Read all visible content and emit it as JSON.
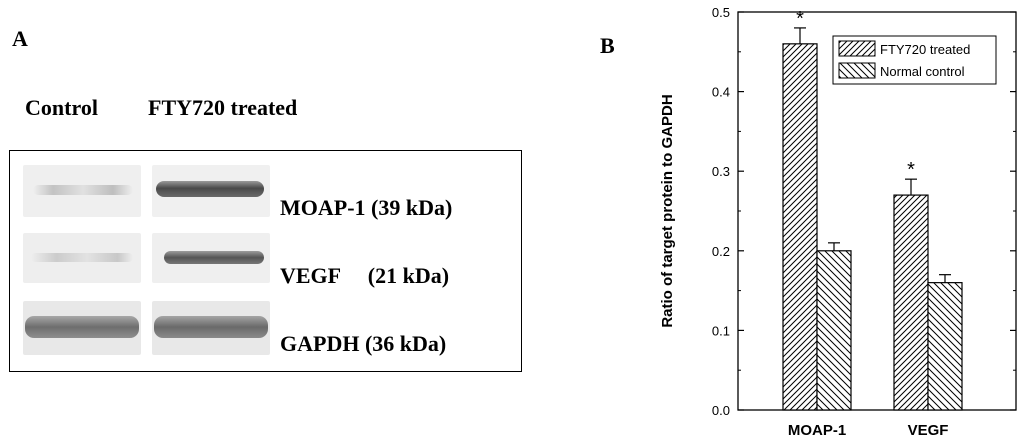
{
  "panel_a": {
    "label": "A",
    "lane_headers": [
      "Control",
      "FTY720 treated"
    ],
    "bands": [
      {
        "name": "MOAP-1 (39 kDa)",
        "control_intensity": 0.12,
        "treated_intensity": 0.75
      },
      {
        "name": "VEGF     (21 kDa)",
        "control_intensity": 0.1,
        "treated_intensity": 0.7
      },
      {
        "name": "GAPDH (36 kDa)",
        "control_intensity": 0.6,
        "treated_intensity": 0.62
      }
    ]
  },
  "panel_b": {
    "label": "B"
  },
  "chart_data": {
    "type": "bar",
    "categories": [
      "MOAP-1",
      "VEGF"
    ],
    "series": [
      {
        "name": "FTY720 treated",
        "values": [
          0.46,
          0.27
        ],
        "errors": [
          0.02,
          0.02
        ],
        "significance": [
          "*",
          "*"
        ],
        "hatch": "forward"
      },
      {
        "name": "Normal control",
        "values": [
          0.2,
          0.16
        ],
        "errors": [
          0.01,
          0.01
        ],
        "significance": [
          "",
          ""
        ],
        "hatch": "backward"
      }
    ],
    "ylabel": "Ratio of target protein to GAPDH",
    "xlabel": "",
    "ylim": [
      0,
      0.5
    ],
    "yticks": [
      "0.0",
      "0.1",
      "0.2",
      "0.3",
      "0.4",
      "0.5"
    ],
    "legend_position": "top-right",
    "grid": false
  }
}
